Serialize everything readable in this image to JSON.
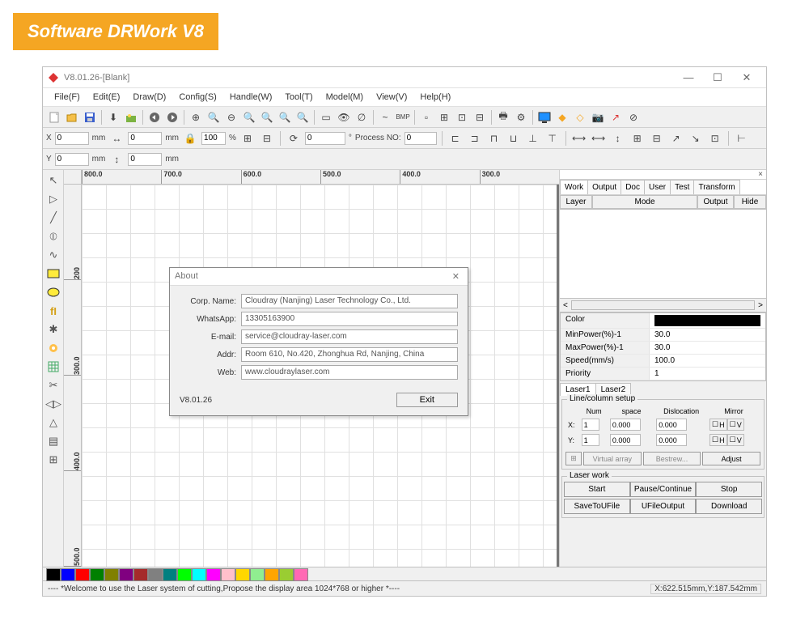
{
  "banner": "Software DRWork V8",
  "window": {
    "title": "V8.01.26-[Blank]"
  },
  "menu": [
    "File(F)",
    "Edit(E)",
    "Draw(D)",
    "Config(S)",
    "Handle(W)",
    "Tool(T)",
    "Model(M)",
    "View(V)",
    "Help(H)"
  ],
  "coord": {
    "x_label": "X",
    "y_label": "Y",
    "x_val": "0",
    "y_val": "0",
    "unit": "mm",
    "w_val": "0",
    "h_val": "0",
    "pct": "100",
    "rot": "0",
    "proc_label": "Process NO:",
    "proc_val": "0"
  },
  "ruler_h": [
    "800.0",
    "700.0",
    "600.0",
    "500.0",
    "400.0",
    "300.0"
  ],
  "ruler_v": [
    "200",
    "300.0",
    "400.0",
    "500.0"
  ],
  "about": {
    "title": "About",
    "rows": [
      {
        "k": "Corp. Name:",
        "v": "Cloudray (Nanjing) Laser Technology Co., Ltd."
      },
      {
        "k": "WhatsApp:",
        "v": "13305163900"
      },
      {
        "k": "E-mail:",
        "v": "service@cloudray-laser.com"
      },
      {
        "k": "Addr:",
        "v": "Room 610, No.420, Zhonghua Rd, Nanjing, China"
      },
      {
        "k": "Web:",
        "v": "www.cloudraylaser.com"
      }
    ],
    "version": "V8.01.26",
    "exit": "Exit"
  },
  "right": {
    "tabs": [
      "Work",
      "Output",
      "Doc",
      "User",
      "Test",
      "Transform"
    ],
    "layer_cols": [
      "Layer",
      "Mode",
      "Output",
      "Hide"
    ],
    "props": [
      {
        "k": "Color",
        "v": ""
      },
      {
        "k": "MinPower(%)-1",
        "v": "30.0"
      },
      {
        "k": "MaxPower(%)-1",
        "v": "30.0"
      },
      {
        "k": "Speed(mm/s)",
        "v": "100.0"
      },
      {
        "k": "Priority",
        "v": "1"
      }
    ],
    "sub_tabs": [
      "Laser1",
      "Laser2"
    ],
    "array": {
      "legend": "Line/column setup",
      "cols": [
        "Num",
        "space",
        "Dislocation",
        "Mirror"
      ],
      "rows": [
        {
          "axis": "X:",
          "num": "1",
          "space": "0.000",
          "disloc": "0.000"
        },
        {
          "axis": "Y:",
          "num": "1",
          "space": "0.000",
          "disloc": "0.000"
        }
      ],
      "mirror_h": "H",
      "mirror_v": "V",
      "btns": [
        "Virtual array",
        "Bestrew...",
        "Adjust"
      ]
    },
    "laser_work": {
      "legend": "Laser work",
      "row1": [
        "Start",
        "Pause/Continue",
        "Stop"
      ],
      "row2": [
        "SaveToUFile",
        "UFileOutput",
        "Download"
      ]
    }
  },
  "palette": [
    "#000000",
    "#0000ff",
    "#ff0000",
    "#008000",
    "#808000",
    "#800080",
    "#a52a2a",
    "#808080",
    "#008080",
    "#00ff00",
    "#00ffff",
    "#ff00ff",
    "#ffc0cb",
    "#ffd700",
    "#90ee90",
    "#ffa500",
    "#9acd32",
    "#ff69b4"
  ],
  "status": {
    "msg": "---- *Welcome to use the Laser system of cutting,Propose the display area 1024*768 or higher *----",
    "coords": "X:622.515mm,Y:187.542mm"
  }
}
